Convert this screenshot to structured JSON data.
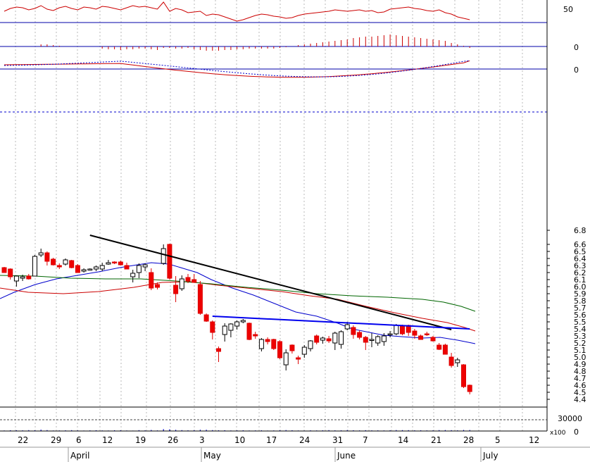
{
  "chart_data": {
    "type": "candlestick",
    "price": {
      "y_ticks": [
        "6.8",
        "6.6",
        "6.5",
        "6.4",
        "6.3",
        "6.2",
        "6.1",
        "6.0",
        "5.9",
        "5.8",
        "5.7",
        "5.6",
        "5.5",
        "5.4",
        "5.3",
        "5.2",
        "5.1",
        "5.0",
        "4.9",
        "4.8",
        "4.7",
        "4.6",
        "4.5",
        "4.4"
      ],
      "ylim": [
        4.4,
        6.8
      ],
      "reference_line": 6.6,
      "candles": [
        {
          "date": "Mar 19",
          "o": 6.27,
          "h": 6.28,
          "l": 6.2,
          "c": 6.2
        },
        {
          "date": "Mar 20",
          "o": 6.25,
          "h": 6.26,
          "l": 6.1,
          "c": 6.14
        },
        {
          "date": "Mar 21",
          "o": 6.08,
          "h": 6.16,
          "l": 6.0,
          "c": 6.15
        },
        {
          "date": "Mar 22",
          "o": 6.12,
          "h": 6.17,
          "l": 6.08,
          "c": 6.14
        },
        {
          "date": "Mar 23",
          "o": 6.15,
          "h": 6.18,
          "l": 6.1,
          "c": 6.11
        },
        {
          "date": "Mar 26",
          "o": 6.15,
          "h": 6.45,
          "l": 6.15,
          "c": 6.43
        },
        {
          "date": "Mar 27",
          "o": 6.45,
          "h": 6.54,
          "l": 6.42,
          "c": 6.48
        },
        {
          "date": "Mar 28",
          "o": 6.48,
          "h": 6.5,
          "l": 6.3,
          "c": 6.36
        },
        {
          "date": "Mar 29",
          "o": 6.39,
          "h": 6.41,
          "l": 6.3,
          "c": 6.31
        },
        {
          "date": "Mar 30",
          "o": 6.3,
          "h": 6.33,
          "l": 6.25,
          "c": 6.28
        },
        {
          "date": "Apr 2",
          "o": 6.32,
          "h": 6.4,
          "l": 6.3,
          "c": 6.38
        },
        {
          "date": "Apr 3",
          "o": 6.37,
          "h": 6.38,
          "l": 6.26,
          "c": 6.27
        },
        {
          "date": "Apr 4",
          "o": 6.3,
          "h": 6.32,
          "l": 6.2,
          "c": 6.2
        },
        {
          "date": "Apr 5",
          "o": 6.22,
          "h": 6.26,
          "l": 6.2,
          "c": 6.24
        },
        {
          "date": "Apr 6",
          "o": 6.25,
          "h": 6.26,
          "l": 6.24,
          "c": 6.25
        },
        {
          "date": "Apr 9",
          "o": 6.25,
          "h": 6.3,
          "l": 6.22,
          "c": 6.28
        },
        {
          "date": "Apr 10",
          "o": 6.25,
          "h": 6.34,
          "l": 6.22,
          "c": 6.3
        },
        {
          "date": "Apr 11",
          "o": 6.32,
          "h": 6.38,
          "l": 6.31,
          "c": 6.34
        },
        {
          "date": "Apr 12",
          "o": 6.35,
          "h": 6.36,
          "l": 6.32,
          "c": 6.34
        },
        {
          "date": "Apr 13",
          "o": 6.35,
          "h": 6.37,
          "l": 6.3,
          "c": 6.31
        },
        {
          "date": "Apr 16",
          "o": 6.3,
          "h": 6.34,
          "l": 6.25,
          "c": 6.25
        },
        {
          "date": "Apr 17",
          "o": 6.14,
          "h": 6.24,
          "l": 6.06,
          "c": 6.19
        },
        {
          "date": "Apr 18",
          "o": 6.2,
          "h": 6.33,
          "l": 6.12,
          "c": 6.3
        },
        {
          "date": "Apr 19",
          "o": 6.28,
          "h": 6.33,
          "l": 6.22,
          "c": 6.31
        },
        {
          "date": "Apr 20",
          "o": 6.2,
          "h": 6.26,
          "l": 5.95,
          "c": 5.98
        },
        {
          "date": "Apr 23",
          "o": 6.03,
          "h": 6.06,
          "l": 5.96,
          "c": 5.99
        },
        {
          "date": "Apr 24",
          "o": 6.33,
          "h": 6.6,
          "l": 6.31,
          "c": 6.54
        },
        {
          "date": "Apr 25",
          "o": 6.6,
          "h": 6.61,
          "l": 6.1,
          "c": 6.12
        },
        {
          "date": "Apr 26",
          "o": 6.02,
          "h": 6.15,
          "l": 5.78,
          "c": 5.9
        },
        {
          "date": "Apr 27",
          "o": 5.97,
          "h": 6.16,
          "l": 5.94,
          "c": 6.11
        },
        {
          "date": "Apr 30",
          "o": 6.13,
          "h": 6.18,
          "l": 6.05,
          "c": 6.08
        },
        {
          "date": "May 1",
          "o": 6.1,
          "h": 6.18,
          "l": 6.06,
          "c": 6.06
        },
        {
          "date": "May 2",
          "o": 6.03,
          "h": 6.08,
          "l": 5.6,
          "c": 5.62
        },
        {
          "date": "May 3",
          "o": 5.6,
          "h": 5.62,
          "l": 5.5,
          "c": 5.51
        },
        {
          "date": "May 4",
          "o": 5.5,
          "h": 5.52,
          "l": 5.25,
          "c": 5.35
        },
        {
          "date": "May 7",
          "o": 5.12,
          "h": 5.15,
          "l": 4.93,
          "c": 5.08
        },
        {
          "date": "May 8",
          "o": 5.32,
          "h": 5.48,
          "l": 5.22,
          "c": 5.44
        },
        {
          "date": "May 9",
          "o": 5.38,
          "h": 5.48,
          "l": 5.28,
          "c": 5.47
        },
        {
          "date": "May 10",
          "o": 5.44,
          "h": 5.52,
          "l": 5.39,
          "c": 5.5
        },
        {
          "date": "May 11",
          "o": 5.5,
          "h": 5.54,
          "l": 5.48,
          "c": 5.52
        },
        {
          "date": "May 14",
          "o": 5.48,
          "h": 5.49,
          "l": 5.24,
          "c": 5.25
        },
        {
          "date": "May 15",
          "o": 5.32,
          "h": 5.36,
          "l": 5.26,
          "c": 5.3
        },
        {
          "date": "May 16",
          "o": 5.12,
          "h": 5.27,
          "l": 5.08,
          "c": 5.25
        },
        {
          "date": "May 17",
          "o": 5.25,
          "h": 5.28,
          "l": 5.18,
          "c": 5.22
        },
        {
          "date": "May 18",
          "o": 5.25,
          "h": 5.26,
          "l": 5.1,
          "c": 5.12
        },
        {
          "date": "May 21",
          "o": 5.22,
          "h": 5.24,
          "l": 4.97,
          "c": 4.99
        },
        {
          "date": "May 22",
          "o": 4.89,
          "h": 5.11,
          "l": 4.81,
          "c": 5.06
        },
        {
          "date": "May 23",
          "o": 5.17,
          "h": 5.18,
          "l": 5.05,
          "c": 5.09
        },
        {
          "date": "May 24",
          "o": 4.99,
          "h": 5.02,
          "l": 4.9,
          "c": 4.97
        },
        {
          "date": "May 25",
          "o": 5.04,
          "h": 5.17,
          "l": 4.99,
          "c": 5.14
        },
        {
          "date": "May 28",
          "o": 5.12,
          "h": 5.24,
          "l": 5.08,
          "c": 5.23
        },
        {
          "date": "May 29",
          "o": 5.3,
          "h": 5.32,
          "l": 5.18,
          "c": 5.21
        },
        {
          "date": "May 30",
          "o": 5.24,
          "h": 5.29,
          "l": 5.19,
          "c": 5.27
        },
        {
          "date": "May 31",
          "o": 5.26,
          "h": 5.3,
          "l": 5.2,
          "c": 5.23
        },
        {
          "date": "Jun 1",
          "o": 5.2,
          "h": 5.36,
          "l": 5.1,
          "c": 5.34
        },
        {
          "date": "Jun 4",
          "o": 5.18,
          "h": 5.38,
          "l": 5.12,
          "c": 5.36
        },
        {
          "date": "Jun 5",
          "o": 5.4,
          "h": 5.5,
          "l": 5.38,
          "c": 5.46
        },
        {
          "date": "Jun 6",
          "o": 5.42,
          "h": 5.45,
          "l": 5.26,
          "c": 5.32
        },
        {
          "date": "Jun 7",
          "o": 5.35,
          "h": 5.38,
          "l": 5.25,
          "c": 5.28
        },
        {
          "date": "Jun 8",
          "o": 5.28,
          "h": 5.3,
          "l": 5.1,
          "c": 5.21
        },
        {
          "date": "Jun 11",
          "o": 5.24,
          "h": 5.34,
          "l": 5.14,
          "c": 5.25
        },
        {
          "date": "Jun 12",
          "o": 5.2,
          "h": 5.31,
          "l": 5.16,
          "c": 5.29
        },
        {
          "date": "Jun 13",
          "o": 5.22,
          "h": 5.34,
          "l": 5.16,
          "c": 5.3
        },
        {
          "date": "Jun 14",
          "o": 5.32,
          "h": 5.37,
          "l": 5.28,
          "c": 5.33
        },
        {
          "date": "Jun 15",
          "o": 5.33,
          "h": 5.47,
          "l": 5.31,
          "c": 5.45
        },
        {
          "date": "Jun 18",
          "o": 5.44,
          "h": 5.46,
          "l": 5.31,
          "c": 5.33
        },
        {
          "date": "Jun 19",
          "o": 5.45,
          "h": 5.46,
          "l": 5.3,
          "c": 5.35
        },
        {
          "date": "Jun 20",
          "o": 5.37,
          "h": 5.4,
          "l": 5.26,
          "c": 5.31
        },
        {
          "date": "Jun 21",
          "o": 5.3,
          "h": 5.32,
          "l": 5.25,
          "c": 5.25
        },
        {
          "date": "Jun 22",
          "o": 5.33,
          "h": 5.36,
          "l": 5.3,
          "c": 5.32
        },
        {
          "date": "Jun 25",
          "o": 5.28,
          "h": 5.3,
          "l": 5.22,
          "c": 5.23
        },
        {
          "date": "Jun 26",
          "o": 5.17,
          "h": 5.2,
          "l": 5.1,
          "c": 5.11
        },
        {
          "date": "Jun 27",
          "o": 5.17,
          "h": 5.19,
          "l": 5.04,
          "c": 5.04
        },
        {
          "date": "Jun 28",
          "o": 5.0,
          "h": 5.06,
          "l": 4.85,
          "c": 4.88
        },
        {
          "date": "Jun 29",
          "o": 4.92,
          "h": 4.99,
          "l": 4.86,
          "c": 4.96
        },
        {
          "date": "Jul 2",
          "o": 4.89,
          "h": 4.9,
          "l": 4.56,
          "c": 4.58
        },
        {
          "date": "Jul 3",
          "o": 4.6,
          "h": 4.61,
          "l": 4.47,
          "c": 4.51
        }
      ],
      "moving_averages": [
        {
          "color": "#0000cc",
          "points": [
            [
              0,
              5.83
            ],
            [
              20,
              5.92
            ],
            [
              50,
              6.03
            ],
            [
              80,
              6.11
            ],
            [
              110,
              6.16
            ],
            [
              140,
              6.21
            ],
            [
              170,
              6.27
            ],
            [
              195,
              6.31
            ],
            [
              215,
              6.34
            ],
            [
              240,
              6.32
            ],
            [
              260,
              6.26
            ],
            [
              280,
              6.2
            ],
            [
              300,
              6.1
            ],
            [
              330,
              5.98
            ],
            [
              360,
              5.88
            ],
            [
              390,
              5.76
            ],
            [
              420,
              5.64
            ],
            [
              450,
              5.58
            ],
            [
              480,
              5.48
            ],
            [
              500,
              5.4
            ],
            [
              520,
              5.36
            ],
            [
              545,
              5.31
            ],
            [
              570,
              5.29
            ],
            [
              600,
              5.27
            ],
            [
              625,
              5.28
            ],
            [
              650,
              5.24
            ],
            [
              675,
              5.19
            ]
          ]
        },
        {
          "color": "#cc0000",
          "points": [
            [
              0,
              5.98
            ],
            [
              40,
              5.92
            ],
            [
              90,
              5.9
            ],
            [
              140,
              5.93
            ],
            [
              190,
              5.99
            ],
            [
              230,
              6.06
            ],
            [
              270,
              6.07
            ],
            [
              310,
              6.02
            ],
            [
              350,
              5.98
            ],
            [
              400,
              5.93
            ],
            [
              440,
              5.87
            ],
            [
              480,
              5.82
            ],
            [
              520,
              5.72
            ],
            [
              560,
              5.63
            ],
            [
              600,
              5.55
            ],
            [
              635,
              5.49
            ],
            [
              660,
              5.42
            ],
            [
              675,
              5.37
            ]
          ]
        },
        {
          "color": "#006600",
          "points": [
            [
              0,
              6.16
            ],
            [
              50,
              6.15
            ],
            [
              100,
              6.12
            ],
            [
              150,
              6.11
            ],
            [
              200,
              6.11
            ],
            [
              250,
              6.08
            ],
            [
              300,
              6.04
            ],
            [
              350,
              5.99
            ],
            [
              400,
              5.95
            ],
            [
              450,
              5.9
            ],
            [
              500,
              5.87
            ],
            [
              550,
              5.85
            ],
            [
              600,
              5.82
            ],
            [
              630,
              5.78
            ],
            [
              655,
              5.72
            ],
            [
              675,
              5.65
            ]
          ]
        }
      ],
      "trendlines": [
        {
          "color": "#000000",
          "from": [
            "Apr 6",
            6.73
          ],
          "to": [
            "Jun 28",
            5.39
          ]
        },
        {
          "color": "#0000ee",
          "from": [
            "May 4",
            5.58
          ],
          "to": [
            "Jul 3",
            5.4
          ]
        }
      ]
    },
    "indicators": [
      {
        "label": "50",
        "zero_label": "",
        "series_color": "#cc0000"
      },
      {
        "label": "0",
        "histogram_color": "#cc0000"
      },
      {
        "label": "0",
        "lines": [
          {
            "color": "#cc0000",
            "dashed": false
          },
          {
            "color": "#0000cc",
            "dashed": true
          }
        ]
      }
    ],
    "volume": {
      "y_tick": "30000",
      "units_note": "x100",
      "y_zero": "0",
      "values": [
        1500,
        2200,
        2100,
        1800,
        2500,
        2000,
        3800,
        2600,
        1400,
        1600,
        1900,
        2400,
        1700,
        1300,
        1800,
        2200,
        1600,
        1400,
        2100,
        2000,
        1500,
        1200,
        2400,
        1800,
        3000,
        1700,
        5200,
        4700,
        3400,
        2500,
        1900,
        2300,
        3600,
        3600,
        2600,
        2000,
        2200,
        1600,
        1800,
        2000,
        1500,
        1700,
        1900,
        1300,
        1600,
        2200,
        2700,
        2100,
        1500,
        1300,
        1900,
        1600,
        1900,
        2500,
        1800,
        1900,
        2600,
        2100,
        1700,
        2300,
        1800,
        1800,
        1600,
        2100,
        2700,
        2500,
        2400,
        1900,
        2000,
        1700,
        1800,
        2600,
        2700,
        2400,
        1900,
        3000,
        2900
      ]
    },
    "x_ticks": [
      "22",
      "29",
      "6",
      "12",
      "19",
      "26",
      "3",
      "10",
      "17",
      "24",
      "31",
      "7",
      "14",
      "21",
      "28",
      "5",
      "12"
    ],
    "months": [
      "April",
      "May",
      "June",
      "July"
    ]
  }
}
